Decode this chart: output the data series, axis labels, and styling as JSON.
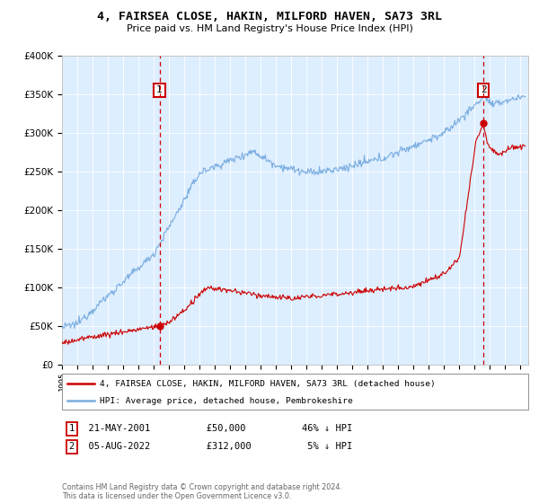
{
  "title": "4, FAIRSEA CLOSE, HAKIN, MILFORD HAVEN, SA73 3RL",
  "subtitle": "Price paid vs. HM Land Registry's House Price Index (HPI)",
  "ylim": [
    0,
    400000
  ],
  "xlim_start": 1995.0,
  "xlim_end": 2025.5,
  "sale1_x": 2001.38,
  "sale1_y": 50000,
  "sale2_x": 2022.58,
  "sale2_y": 312000,
  "legend_line1": "4, FAIRSEA CLOSE, HAKIN, MILFORD HAVEN, SA73 3RL (detached house)",
  "legend_line2": "HPI: Average price, detached house, Pembrokeshire",
  "footer": "Contains HM Land Registry data © Crown copyright and database right 2024.\nThis data is licensed under the Open Government Licence v3.0.",
  "line_color_red": "#cc0000",
  "line_color_blue": "#7aade0",
  "plot_bg": "#ddeeff",
  "ann1_date": "21-MAY-2001",
  "ann1_price": "£50,000",
  "ann1_hpi": "46% ↓ HPI",
  "ann2_date": "05-AUG-2022",
  "ann2_price": "£312,000",
  "ann2_hpi": "5% ↓ HPI"
}
